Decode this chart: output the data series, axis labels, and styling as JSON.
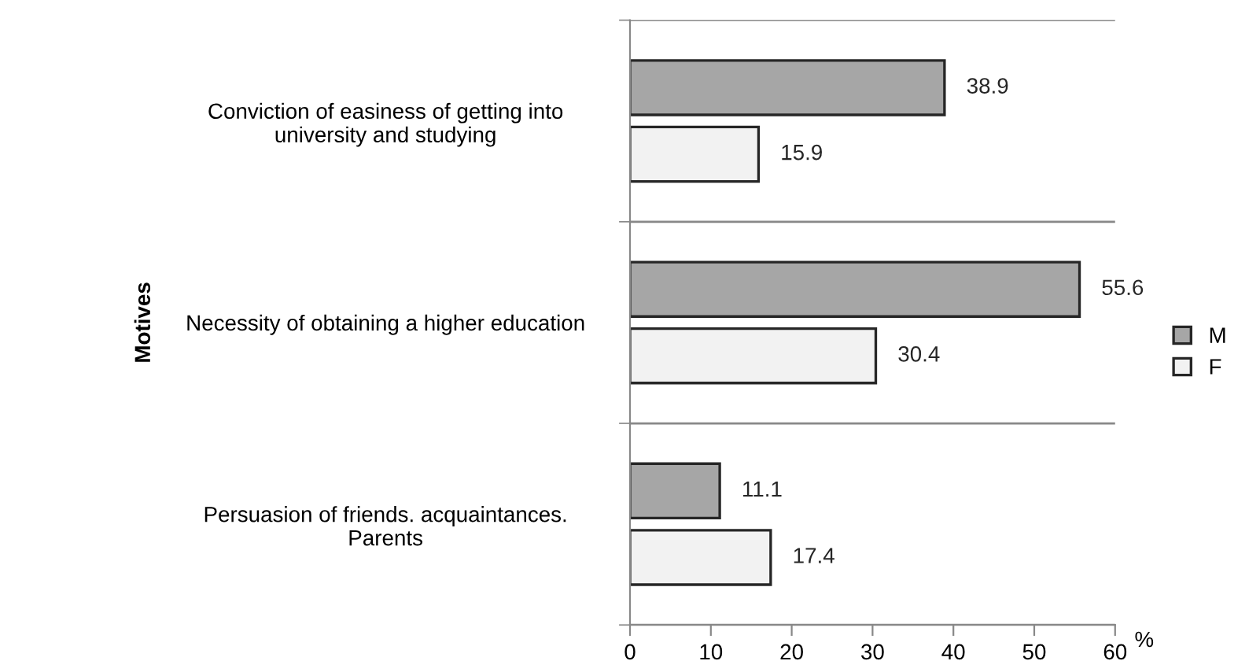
{
  "chart_data": {
    "type": "bar",
    "orientation": "horizontal",
    "ylabel": "Motives",
    "xlabel": "%",
    "categories": [
      "Conviction of easiness of getting into\nuniversity and studying",
      "Necessity of obtaining a higher education",
      "Persuasion of friends. acquaintances.\nParents"
    ],
    "series": [
      {
        "name": "M",
        "color": "#a6a6a6",
        "values": [
          38.9,
          55.6,
          11.1
        ]
      },
      {
        "name": "F",
        "color": "#f2f2f2",
        "values": [
          15.9,
          30.4,
          17.4
        ]
      }
    ],
    "xlim": [
      0,
      60
    ],
    "xticks": [
      0,
      10,
      20,
      30,
      40,
      50,
      60
    ],
    "grid": "y",
    "legend": "right",
    "data_labels": true
  }
}
